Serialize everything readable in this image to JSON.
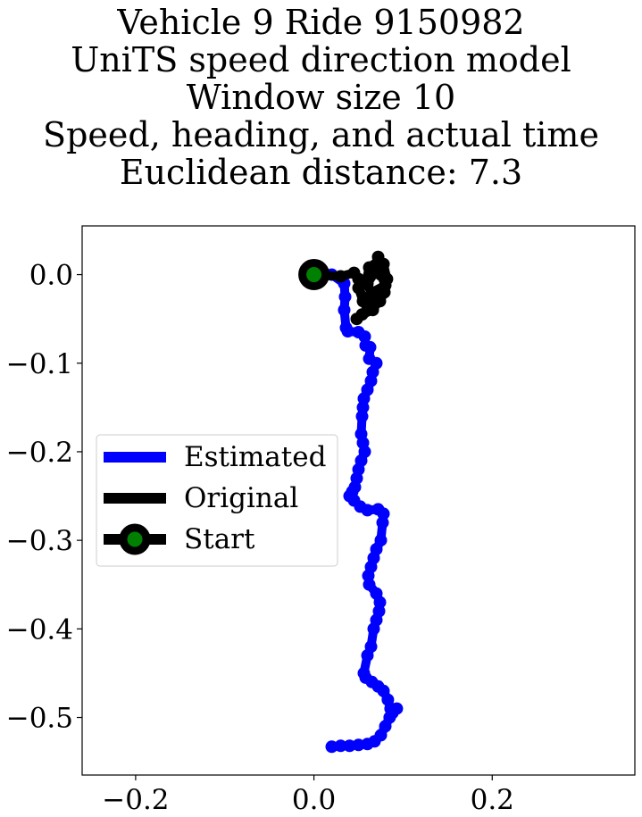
{
  "chart_data": {
    "type": "line",
    "title_lines": [
      "Vehicle 9 Ride 9150982",
      "UniTS speed direction model",
      "Window size 10",
      "Speed, heading, and actual time",
      "Euclidean distance: 7.3"
    ],
    "xlabel": "",
    "ylabel": "",
    "xlim": [
      -0.26,
      0.36
    ],
    "ylim": [
      -0.565,
      0.055
    ],
    "x_ticks": [
      -0.2,
      0.0,
      0.2
    ],
    "y_ticks": [
      0.0,
      -0.1,
      -0.2,
      -0.3,
      -0.4,
      -0.5
    ],
    "x_tick_labels": [
      "−0.2",
      "0.0",
      "0.2"
    ],
    "y_tick_labels": [
      "0.0",
      "−0.1",
      "−0.2",
      "−0.3",
      "−0.4",
      "−0.5"
    ],
    "grid": false,
    "legend_placement": "center-left",
    "series": [
      {
        "name": "Estimated",
        "color": "#0000ff",
        "marker": "circle",
        "x": [
          0.0,
          0.02,
          0.034,
          0.035,
          0.034,
          0.036,
          0.038,
          0.05,
          0.057,
          0.058,
          0.063,
          0.062,
          0.07,
          0.066,
          0.064,
          0.06,
          0.056,
          0.055,
          0.054,
          0.053,
          0.055,
          0.057,
          0.053,
          0.05,
          0.048,
          0.046,
          0.043,
          0.04,
          0.045,
          0.052,
          0.06,
          0.072,
          0.078,
          0.077,
          0.075,
          0.07,
          0.067,
          0.064,
          0.061,
          0.062,
          0.07,
          0.074,
          0.073,
          0.07,
          0.067,
          0.064,
          0.06,
          0.056,
          0.058,
          0.065,
          0.072,
          0.078,
          0.083,
          0.086,
          0.088,
          0.093,
          0.085,
          0.08,
          0.075,
          0.068,
          0.06,
          0.05,
          0.04,
          0.03,
          0.02
        ],
        "y": [
          0.0,
          0.0,
          -0.01,
          -0.025,
          -0.04,
          -0.06,
          -0.064,
          -0.065,
          -0.07,
          -0.08,
          -0.082,
          -0.095,
          -0.1,
          -0.11,
          -0.12,
          -0.13,
          -0.14,
          -0.15,
          -0.16,
          -0.18,
          -0.19,
          -0.2,
          -0.21,
          -0.22,
          -0.23,
          -0.24,
          -0.245,
          -0.25,
          -0.255,
          -0.262,
          -0.266,
          -0.265,
          -0.27,
          -0.28,
          -0.3,
          -0.31,
          -0.32,
          -0.33,
          -0.34,
          -0.35,
          -0.36,
          -0.37,
          -0.38,
          -0.39,
          -0.4,
          -0.42,
          -0.43,
          -0.45,
          -0.455,
          -0.46,
          -0.465,
          -0.47,
          -0.48,
          -0.49,
          -0.495,
          -0.49,
          -0.5,
          -0.51,
          -0.52,
          -0.527,
          -0.53,
          -0.531,
          -0.532,
          -0.532,
          -0.533
        ]
      },
      {
        "name": "Original",
        "color": "#000000",
        "marker": "circle",
        "x": [
          0.0,
          0.03,
          0.045,
          0.05,
          0.06,
          0.07,
          0.072,
          0.068,
          0.075,
          0.08,
          0.065,
          0.058,
          0.062,
          0.078,
          0.082,
          0.07,
          0.055,
          0.05,
          0.06,
          0.074,
          0.079,
          0.066,
          0.054,
          0.048
        ],
        "y": [
          0.0,
          -0.002,
          0.002,
          -0.005,
          -0.01,
          0.005,
          0.02,
          0.01,
          0.0,
          -0.012,
          -0.02,
          -0.01,
          0.008,
          0.012,
          -0.005,
          -0.025,
          -0.03,
          -0.015,
          -0.035,
          -0.03,
          -0.02,
          -0.04,
          -0.045,
          -0.05
        ]
      }
    ],
    "start": {
      "name": "Start",
      "x": 0.0,
      "y": 0.0,
      "marker_color": "#008000",
      "edge_color": "#000000"
    },
    "legend": [
      "Estimated",
      "Original",
      "Start"
    ]
  }
}
